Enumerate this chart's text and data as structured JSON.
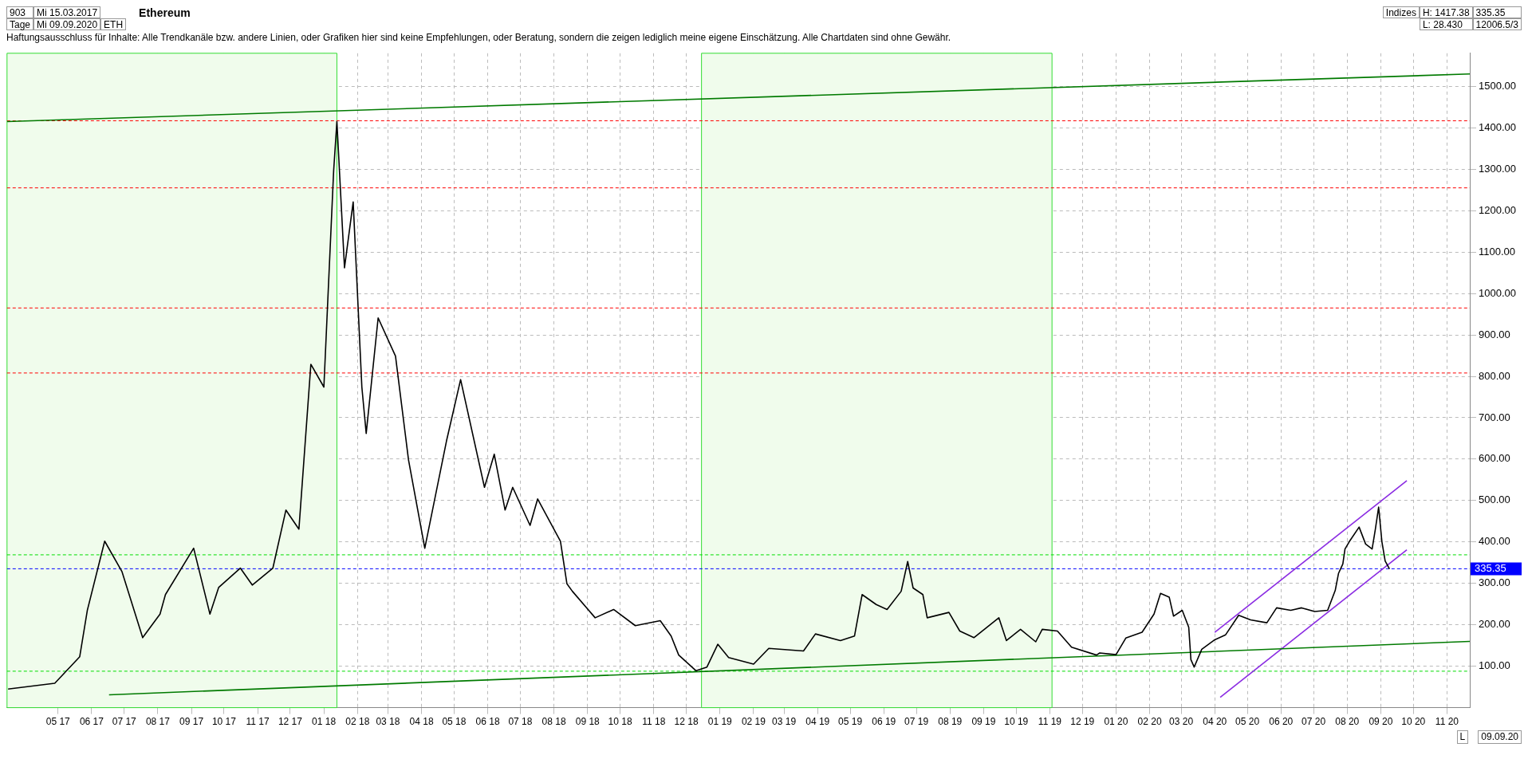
{
  "chart_data": {
    "type": "line",
    "title": "Ethereum",
    "subtitle": "Haftungsausschluss für Inhalte: Alle Trendkanäle bzw. andere Linien, oder Grafiken hier sind keine Empfehlungen, oder Beratung, sondern die zeigen lediglich meine eigene Einschätzung. Alle Chartdaten sind ohne Gewähr.",
    "annotations": [
      "903",
      "Mi 15.03.2017",
      "Tage",
      "Mi 09.09.2020",
      "ETH",
      "Indizes",
      "H: 1417.38",
      "L: 28.430",
      "335.35",
      "12006.5/3",
      "09.09.20",
      "L"
    ],
    "xlim": [
      "2017-03-15",
      "2020-11-22"
    ],
    "xticks": [
      {
        "value": "2017-05",
        "label": "05 17"
      },
      {
        "value": "2017-06",
        "label": "06 17"
      },
      {
        "value": "2017-07",
        "label": "07 17"
      },
      {
        "value": "2017-08",
        "label": "08 17"
      },
      {
        "value": "2017-09",
        "label": "09 17"
      },
      {
        "value": "2017-10",
        "label": "10 17"
      },
      {
        "value": "2017-11",
        "label": "11 17"
      },
      {
        "value": "2017-12",
        "label": "12 17"
      },
      {
        "value": "2018-01",
        "label": "01 18"
      },
      {
        "value": "2018-02",
        "label": "02 18"
      },
      {
        "value": "2018-03",
        "label": "03 18"
      },
      {
        "value": "2018-04",
        "label": "04 18"
      },
      {
        "value": "2018-05",
        "label": "05 18"
      },
      {
        "value": "2018-06",
        "label": "06 18"
      },
      {
        "value": "2018-07",
        "label": "07 18"
      },
      {
        "value": "2018-08",
        "label": "08 18"
      },
      {
        "value": "2018-09",
        "label": "09 18"
      },
      {
        "value": "2018-10",
        "label": "10 18"
      },
      {
        "value": "2018-11",
        "label": "11 18"
      },
      {
        "value": "2018-12",
        "label": "12 18"
      },
      {
        "value": "2019-01",
        "label": "01 19"
      },
      {
        "value": "2019-02",
        "label": "02 19"
      },
      {
        "value": "2019-03",
        "label": "03 19"
      },
      {
        "value": "2019-04",
        "label": "04 19"
      },
      {
        "value": "2019-05",
        "label": "05 19"
      },
      {
        "value": "2019-06",
        "label": "06 19"
      },
      {
        "value": "2019-07",
        "label": "07 19"
      },
      {
        "value": "2019-08",
        "label": "08 19"
      },
      {
        "value": "2019-09",
        "label": "09 19"
      },
      {
        "value": "2019-10",
        "label": "10 19"
      },
      {
        "value": "2019-11",
        "label": "11 19"
      },
      {
        "value": "2019-12",
        "label": "12 19"
      },
      {
        "value": "2020-01",
        "label": "01 20"
      },
      {
        "value": "2020-02",
        "label": "02 20"
      },
      {
        "value": "2020-03",
        "label": "03 20"
      },
      {
        "value": "2020-04",
        "label": "04 20"
      },
      {
        "value": "2020-05",
        "label": "05 20"
      },
      {
        "value": "2020-06",
        "label": "06 20"
      },
      {
        "value": "2020-07",
        "label": "07 20"
      },
      {
        "value": "2020-08",
        "label": "08 20"
      },
      {
        "value": "2020-09",
        "label": "09 20"
      },
      {
        "value": "2020-10",
        "label": "10 20"
      },
      {
        "value": "2020-11",
        "label": "11 20"
      }
    ],
    "ylim": [
      0,
      1580
    ],
    "yticks": [
      {
        "value": 100,
        "label": "100.00"
      },
      {
        "value": 200,
        "label": "200.00"
      },
      {
        "value": 300,
        "label": "300.00"
      },
      {
        "value": 400,
        "label": "400.00"
      },
      {
        "value": 500,
        "label": "500.00"
      },
      {
        "value": 600,
        "label": "600.00"
      },
      {
        "value": 700,
        "label": "700.00"
      },
      {
        "value": 800,
        "label": "800.00"
      },
      {
        "value": 900,
        "label": "900.00"
      },
      {
        "value": 1000,
        "label": "1000.00"
      },
      {
        "value": 1100,
        "label": "1100.00"
      },
      {
        "value": 1200,
        "label": "1200.00"
      },
      {
        "value": 1300,
        "label": "1300.00"
      },
      {
        "value": 1400,
        "label": "1400.00"
      },
      {
        "value": 1500,
        "label": "1500.00"
      }
    ],
    "grid": true,
    "legend": false,
    "marker": "none",
    "line_style": "solid",
    "series": [
      {
        "color": "#000000",
        "x": [
          "2017-03-16",
          "2017-04-28",
          "2017-05-21",
          "2017-05-28",
          "2017-06-13",
          "2017-06-29",
          "2017-07-18",
          "2017-08-03",
          "2017-08-08",
          "2017-09-03",
          "2017-09-18",
          "2017-09-26",
          "2017-10-16",
          "2017-10-27",
          "2017-11-15",
          "2017-11-27",
          "2017-12-09",
          "2017-12-20",
          "2018-01-01",
          "2018-01-10",
          "2018-01-13",
          "2018-01-20",
          "2018-01-28",
          "2018-02-05",
          "2018-02-09",
          "2018-02-20",
          "2018-03-08",
          "2018-03-20",
          "2018-04-04",
          "2018-04-24",
          "2018-05-07",
          "2018-05-29",
          "2018-06-07",
          "2018-06-17",
          "2018-06-24",
          "2018-07-10",
          "2018-07-17",
          "2018-08-07",
          "2018-08-13",
          "2018-08-18",
          "2018-09-08",
          "2018-09-25",
          "2018-10-15",
          "2018-11-07",
          "2018-11-17",
          "2018-11-24",
          "2018-12-10",
          "2018-12-20",
          "2018-12-30",
          "2019-01-09",
          "2019-02-01",
          "2019-02-15",
          "2019-03-19",
          "2019-03-30",
          "2019-04-22",
          "2019-05-05",
          "2019-05-12",
          "2019-05-25",
          "2019-06-04",
          "2019-06-17",
          "2019-06-23",
          "2019-06-28",
          "2019-07-07",
          "2019-07-11",
          "2019-07-31",
          "2019-08-10",
          "2019-08-23",
          "2019-09-15",
          "2019-09-22",
          "2019-10-05",
          "2019-10-19",
          "2019-10-25",
          "2019-11-08",
          "2019-11-21",
          "2019-12-14",
          "2019-12-17",
          "2020-01-01",
          "2020-01-10",
          "2020-01-25",
          "2020-02-05",
          "2020-02-11",
          "2020-02-19",
          "2020-02-23",
          "2020-03-02",
          "2020-03-08",
          "2020-03-10",
          "2020-03-13",
          "2020-03-20",
          "2020-04-01",
          "2020-04-11",
          "2020-04-23",
          "2020-05-04",
          "2020-05-19",
          "2020-05-28",
          "2020-06-10",
          "2020-06-20",
          "2020-07-02",
          "2020-07-14",
          "2020-07-21",
          "2020-07-24",
          "2020-07-28",
          "2020-07-30",
          "2020-08-03",
          "2020-08-12",
          "2020-08-18",
          "2020-08-24",
          "2020-08-27",
          "2020-08-30",
          "2020-09-02",
          "2020-09-05",
          "2020-09-09"
        ],
        "values": [
          45,
          59,
          123,
          235,
          402,
          328,
          169,
          226,
          273,
          385,
          226,
          290,
          337,
          296,
          337,
          477,
          431,
          829,
          774,
          1296,
          1415,
          1062,
          1221,
          774,
          662,
          941,
          849,
          598,
          385,
          644,
          792,
          532,
          612,
          477,
          532,
          440,
          504,
          402,
          299,
          281,
          217,
          237,
          198,
          210,
          173,
          127,
          89,
          98,
          153,
          121,
          105,
          143,
          137,
          178,
          162,
          173,
          273,
          249,
          237,
          281,
          353,
          289,
          273,
          217,
          230,
          185,
          169,
          217,
          162,
          189,
          159,
          189,
          185,
          146,
          127,
          132,
          128,
          168,
          182,
          226,
          276,
          267,
          221,
          235,
          194,
          116,
          98,
          141,
          164,
          176,
          223,
          212,
          205,
          241,
          235,
          241,
          232,
          235,
          283,
          324,
          347,
          383,
          401,
          436,
          395,
          383,
          431,
          484,
          401,
          354,
          335
        ]
      },
      {
        "color": "#007a00",
        "x": [
          "2017-03-15",
          "2020-11-22"
        ],
        "values": [
          1415,
          1530
        ]
      },
      {
        "color": "#007a00",
        "x": [
          "2017-06-17",
          "2020-11-22"
        ],
        "values": [
          31,
          160
        ]
      },
      {
        "color": "#8a2be2",
        "x": [
          "2020-04-01",
          "2020-09-25"
        ],
        "values": [
          182,
          548
        ]
      },
      {
        "color": "#8a2be2",
        "x": [
          "2020-04-06",
          "2020-09-25"
        ],
        "values": [
          25,
          381
        ]
      }
    ],
    "ref_lines": [
      {
        "axis": "y",
        "value": 1417,
        "color": "#ff0000",
        "line_style": "dashed"
      },
      {
        "axis": "y",
        "value": 1255,
        "color": "#ff0000",
        "line_style": "dashed"
      },
      {
        "axis": "y",
        "value": 965,
        "color": "#ff0000",
        "line_style": "dashed"
      },
      {
        "axis": "y",
        "value": 808,
        "color": "#ff0000",
        "line_style": "dashed"
      },
      {
        "axis": "y",
        "value": 369,
        "color": "#00dd00",
        "line_style": "dashed"
      },
      {
        "axis": "y",
        "value": 88,
        "color": "#00dd00",
        "line_style": "dashed"
      },
      {
        "axis": "y",
        "value": 335.35,
        "label": "335.35",
        "color": "#0000ff",
        "line_style": "dashed"
      }
    ],
    "bands": [
      {
        "axis": "x",
        "from": "2017-03-15",
        "to": "2018-01-13",
        "color": "#f0fcec"
      },
      {
        "axis": "x",
        "from": "2018-12-15",
        "to": "2019-11-03",
        "color": "#f0fcec"
      }
    ]
  }
}
